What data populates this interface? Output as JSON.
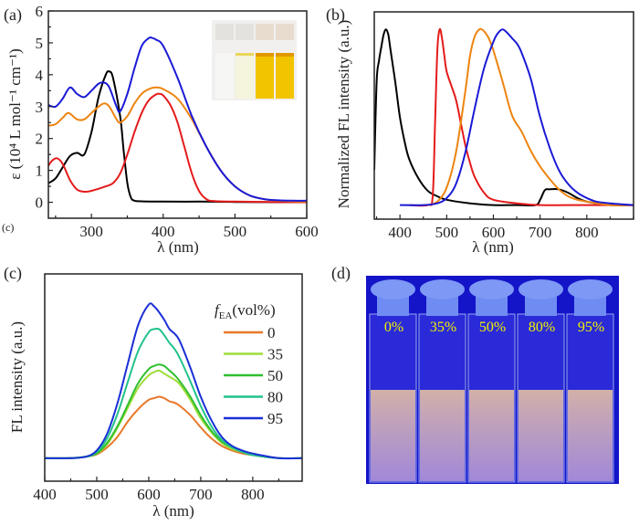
{
  "figure": {
    "panel_labels": [
      "(a)",
      "(b)",
      "(c)",
      "(d)"
    ],
    "stray_label": "(c)"
  },
  "chart_data": [
    {
      "id": "a",
      "type": "line",
      "panel_label": "(a)",
      "title": "",
      "xlabel": "λ (nm)",
      "ylabel": "ε (10⁴ L mol⁻¹ cm⁻¹)",
      "xlim": [
        240,
        600
      ],
      "ylim": [
        -0.5,
        6
      ],
      "xticks": [
        300,
        400,
        500,
        600
      ],
      "xtick_labels": [
        "300",
        "400",
        "500",
        "600"
      ],
      "yticks": [
        0,
        1,
        2,
        3,
        4,
        5,
        6
      ],
      "ytick_labels": [
        "0",
        "1",
        "2",
        "3",
        "4",
        "5",
        "6"
      ],
      "grid": false,
      "inset": "photo of four cuvettes (colorless, pale yellow, yellow, yellow)",
      "series": [
        {
          "name": "black",
          "color": "#000000",
          "x": [
            240,
            250,
            260,
            270,
            280,
            290,
            300,
            310,
            320,
            325,
            330,
            340,
            345,
            350,
            355,
            360,
            370,
            400,
            450,
            500,
            600
          ],
          "y": [
            0.6,
            0.75,
            1.1,
            1.45,
            1.55,
            1.5,
            2.2,
            3.3,
            4.0,
            4.1,
            3.9,
            2.7,
            1.6,
            0.6,
            0.15,
            0.05,
            0.03,
            0.02,
            0.02,
            0.01,
            0.0
          ]
        },
        {
          "name": "red",
          "color": "#e51b1b",
          "x": [
            240,
            245,
            252,
            260,
            270,
            280,
            290,
            300,
            320,
            330,
            340,
            350,
            360,
            370,
            380,
            390,
            395,
            400,
            410,
            420,
            430,
            440,
            450,
            460,
            470,
            500,
            600
          ],
          "y": [
            1.15,
            1.3,
            1.38,
            1.2,
            0.7,
            0.4,
            0.33,
            0.36,
            0.5,
            0.6,
            0.9,
            1.5,
            2.2,
            2.8,
            3.2,
            3.38,
            3.4,
            3.35,
            3.05,
            2.5,
            1.7,
            0.9,
            0.35,
            0.1,
            0.04,
            0.02,
            0.0
          ]
        },
        {
          "name": "orange",
          "color": "#ee8410",
          "x": [
            240,
            250,
            260,
            268,
            280,
            290,
            300,
            310,
            318,
            325,
            335,
            340,
            350,
            360,
            370,
            380,
            390,
            400,
            420,
            440,
            460,
            480,
            500,
            520,
            540,
            560,
            580,
            600
          ],
          "y": [
            2.4,
            2.45,
            2.65,
            2.8,
            2.6,
            2.6,
            2.8,
            3.0,
            3.1,
            3.0,
            2.6,
            2.5,
            2.7,
            3.1,
            3.4,
            3.55,
            3.6,
            3.55,
            3.25,
            2.6,
            1.75,
            1.0,
            0.5,
            0.22,
            0.1,
            0.05,
            0.03,
            0.02
          ]
        },
        {
          "name": "blue",
          "color": "#1a1ad6",
          "x": [
            240,
            250,
            260,
            270,
            280,
            290,
            300,
            310,
            318,
            325,
            335,
            340,
            350,
            360,
            370,
            380,
            385,
            390,
            400,
            420,
            440,
            460,
            480,
            500,
            520,
            540,
            560,
            580,
            600
          ],
          "y": [
            3.05,
            3.0,
            3.25,
            3.6,
            3.4,
            3.3,
            3.5,
            3.72,
            3.75,
            3.6,
            3.0,
            2.85,
            3.4,
            4.2,
            4.9,
            5.15,
            5.15,
            5.1,
            4.9,
            3.9,
            2.7,
            1.75,
            1.0,
            0.5,
            0.22,
            0.1,
            0.06,
            0.05,
            0.05
          ]
        }
      ]
    },
    {
      "id": "b",
      "type": "line",
      "panel_label": "(b)",
      "title": "",
      "xlabel": "λ (nm)",
      "ylabel": "Normalized FL intensity (a.u.)",
      "xlim": [
        345,
        900
      ],
      "ylim": [
        -0.08,
        1.1
      ],
      "xticks": [
        400,
        500,
        600,
        700,
        800
      ],
      "xtick_labels": [
        "400",
        "500",
        "600",
        "700",
        "800"
      ],
      "grid": false,
      "series": [
        {
          "name": "black",
          "color": "#000000",
          "x": [
            345,
            350,
            355,
            360,
            365,
            370,
            375,
            380,
            390,
            400,
            410,
            420,
            440,
            460,
            480,
            500,
            550,
            600,
            650,
            690,
            700,
            710,
            720,
            740,
            760,
            780,
            800,
            850,
            900
          ],
          "y": [
            0.2,
            0.7,
            0.82,
            0.9,
            0.97,
            1.0,
            0.97,
            0.88,
            0.7,
            0.5,
            0.36,
            0.26,
            0.15,
            0.08,
            0.05,
            0.03,
            0.01,
            0.0,
            0.0,
            0.0,
            0.03,
            0.085,
            0.09,
            0.09,
            0.07,
            0.04,
            0.02,
            0.0,
            0.0
          ]
        },
        {
          "name": "red",
          "color": "#e51b1b",
          "x": [
            420,
            460,
            470,
            475,
            480,
            485,
            490,
            495,
            500,
            510,
            520,
            530,
            540,
            550,
            560,
            580,
            600,
            650,
            700,
            800,
            900
          ],
          "y": [
            0.0,
            0.0,
            0.05,
            0.45,
            0.88,
            1.0,
            0.95,
            0.85,
            0.76,
            0.68,
            0.6,
            0.47,
            0.34,
            0.24,
            0.16,
            0.07,
            0.03,
            0.01,
            0.0,
            0.0,
            0.0
          ]
        },
        {
          "name": "orange",
          "color": "#ee8410",
          "x": [
            460,
            480,
            500,
            520,
            540,
            550,
            560,
            570,
            575,
            580,
            590,
            600,
            620,
            640,
            660,
            680,
            700,
            720,
            740,
            760,
            780,
            800,
            850,
            900
          ],
          "y": [
            0.0,
            0.02,
            0.1,
            0.3,
            0.65,
            0.85,
            0.96,
            1.0,
            1.0,
            0.99,
            0.95,
            0.88,
            0.7,
            0.51,
            0.42,
            0.31,
            0.22,
            0.15,
            0.09,
            0.05,
            0.03,
            0.02,
            0.0,
            0.0
          ]
        },
        {
          "name": "blue",
          "color": "#1a1ad6",
          "x": [
            400,
            450,
            480,
            500,
            520,
            540,
            560,
            580,
            600,
            610,
            620,
            630,
            640,
            650,
            660,
            680,
            700,
            720,
            740,
            760,
            780,
            800,
            820,
            850,
            900
          ],
          "y": [
            0.0,
            0.0,
            0.01,
            0.04,
            0.12,
            0.3,
            0.55,
            0.78,
            0.93,
            0.98,
            1.0,
            0.98,
            0.95,
            0.92,
            0.87,
            0.72,
            0.5,
            0.33,
            0.2,
            0.12,
            0.07,
            0.04,
            0.02,
            0.01,
            0.0
          ]
        }
      ]
    },
    {
      "id": "c",
      "type": "line",
      "panel_label": "(c)",
      "title": "",
      "xlabel": "λ (nm)",
      "ylabel": "FL intensity (a.u.)",
      "xlim": [
        400,
        895
      ],
      "ylim": [
        -0.15,
        1.2
      ],
      "xticks": [
        400,
        500,
        600,
        700,
        800
      ],
      "xtick_labels": [
        "400",
        "500",
        "600",
        "700",
        "800"
      ],
      "grid": false,
      "legend_title": "fEA(vol%)",
      "legend_title_main": "f",
      "legend_title_sub": "EA",
      "legend_title_rest": "(vol%)",
      "legend_placement": "top-right",
      "x": [
        400,
        450,
        480,
        500,
        520,
        540,
        560,
        580,
        600,
        610,
        620,
        630,
        640,
        650,
        660,
        680,
        700,
        720,
        740,
        760,
        780,
        800,
        850,
        895
      ],
      "series": [
        {
          "name": "0",
          "color": "#e8782a",
          "y": [
            0.0,
            0.0,
            0.01,
            0.025,
            0.07,
            0.14,
            0.24,
            0.32,
            0.38,
            0.39,
            0.4,
            0.39,
            0.37,
            0.36,
            0.34,
            0.28,
            0.2,
            0.13,
            0.08,
            0.05,
            0.03,
            0.02,
            0.0,
            0.0
          ]
        },
        {
          "name": "35",
          "color": "#9fdc3a",
          "y": [
            0.0,
            0.0,
            0.01,
            0.03,
            0.09,
            0.2,
            0.33,
            0.46,
            0.54,
            0.56,
            0.57,
            0.55,
            0.53,
            0.51,
            0.48,
            0.38,
            0.26,
            0.17,
            0.1,
            0.06,
            0.04,
            0.02,
            0.0,
            0.0
          ]
        },
        {
          "name": "50",
          "color": "#2fbf2f",
          "y": [
            0.0,
            0.0,
            0.01,
            0.03,
            0.1,
            0.21,
            0.35,
            0.49,
            0.58,
            0.6,
            0.61,
            0.6,
            0.57,
            0.54,
            0.5,
            0.4,
            0.28,
            0.18,
            0.11,
            0.07,
            0.04,
            0.02,
            0.0,
            0.0
          ]
        },
        {
          "name": "80",
          "color": "#22c28a",
          "y": [
            0.0,
            0.0,
            0.01,
            0.04,
            0.13,
            0.29,
            0.5,
            0.7,
            0.82,
            0.84,
            0.84,
            0.8,
            0.75,
            0.71,
            0.65,
            0.5,
            0.34,
            0.21,
            0.12,
            0.07,
            0.04,
            0.02,
            0.0,
            0.0
          ]
        },
        {
          "name": "95",
          "color": "#1a2fd6",
          "y": [
            0.0,
            0.0,
            0.01,
            0.05,
            0.16,
            0.36,
            0.62,
            0.87,
            1.0,
            0.99,
            0.95,
            0.9,
            0.84,
            0.81,
            0.76,
            0.59,
            0.4,
            0.25,
            0.14,
            0.08,
            0.05,
            0.03,
            0.0,
            0.0
          ]
        }
      ]
    }
  ],
  "photo_d": {
    "panel_label": "(d)",
    "description": "five cuvettes under UV light",
    "background_color": "#1414c8",
    "labels": [
      "0%",
      "35%",
      "50%",
      "80%",
      "95%"
    ],
    "label_color": "#f2f200"
  }
}
